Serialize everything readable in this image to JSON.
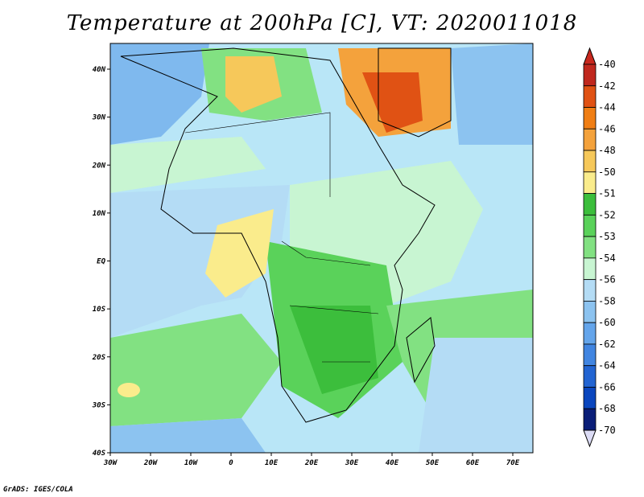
{
  "title": "Temperature at 200hPa [C], VT: 2020011018",
  "credit": "GrADS: IGES/COLA",
  "map": {
    "lon_ticks": [
      "30W",
      "20W",
      "10W",
      "0",
      "10E",
      "20E",
      "30E",
      "40E",
      "50E",
      "60E",
      "70E"
    ],
    "lat_ticks": [
      "40N",
      "30N",
      "20N",
      "10N",
      "EQ",
      "10S",
      "20S",
      "30S",
      "40S"
    ]
  },
  "colorbar": {
    "levels": [
      "-40",
      "-42",
      "-44",
      "-46",
      "-48",
      "-50",
      "-51",
      "-52",
      "-53",
      "-54",
      "-56",
      "-58",
      "-60",
      "-62",
      "-64",
      "-66",
      "-68",
      "-70"
    ],
    "colors": [
      "#c0281e",
      "#e05214",
      "#f07e14",
      "#f4a23c",
      "#f6c85a",
      "#faec8c",
      "#3cbe3c",
      "#5ad25a",
      "#82e182",
      "#c8f5d2",
      "#b4dcf5",
      "#8cc3f0",
      "#64a5eb",
      "#4185e1",
      "#2264d2",
      "#0a46be",
      "#0a1e78"
    ],
    "top_color": "#c8281e",
    "bottom_color": "#dcdcf5"
  }
}
